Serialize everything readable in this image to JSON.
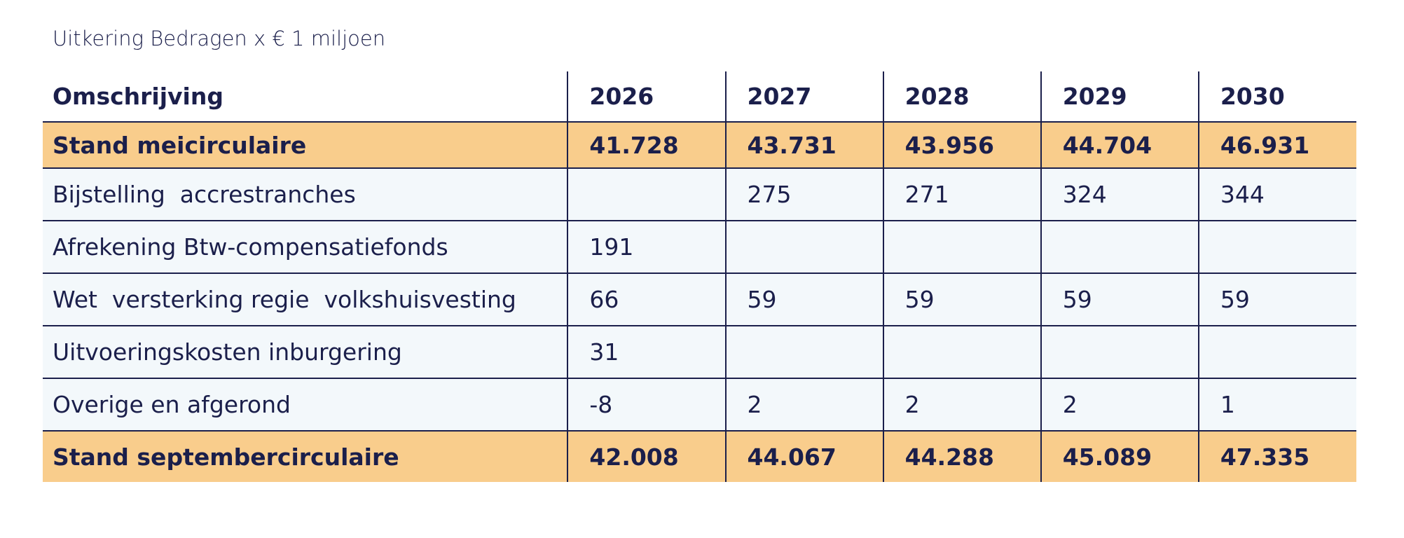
{
  "title": "Uitkering Bedragen x € 1 miljoen",
  "table": {
    "header": [
      "Omschrijving",
      "2026",
      "2027",
      "2028",
      "2029",
      "2030"
    ],
    "rows": [
      [
        "Stand meicirculaire",
        "41.728",
        "43.731",
        "43.956",
        "44.704",
        "46.931"
      ],
      [
        "Bijstelling  accrestranches",
        null,
        "275",
        "271",
        "324",
        "344"
      ],
      [
        "Afrekening Btw-compensatiefonds",
        "191",
        null,
        null,
        null,
        null
      ],
      [
        "Wet  versterking regie  volkshuisvesting",
        "66",
        "59",
        "59",
        "59",
        "59"
      ],
      [
        "Uitvoeringskosten inburgering",
        "31",
        null,
        null,
        null,
        null
      ],
      [
        "Overige en afgerond",
        "-8",
        "2",
        "2",
        "2",
        "1"
      ],
      [
        "Stand septembercirculaire",
        "42.008",
        "44.067",
        "44.288",
        "45.089",
        "47.335"
      ]
    ]
  }
}
